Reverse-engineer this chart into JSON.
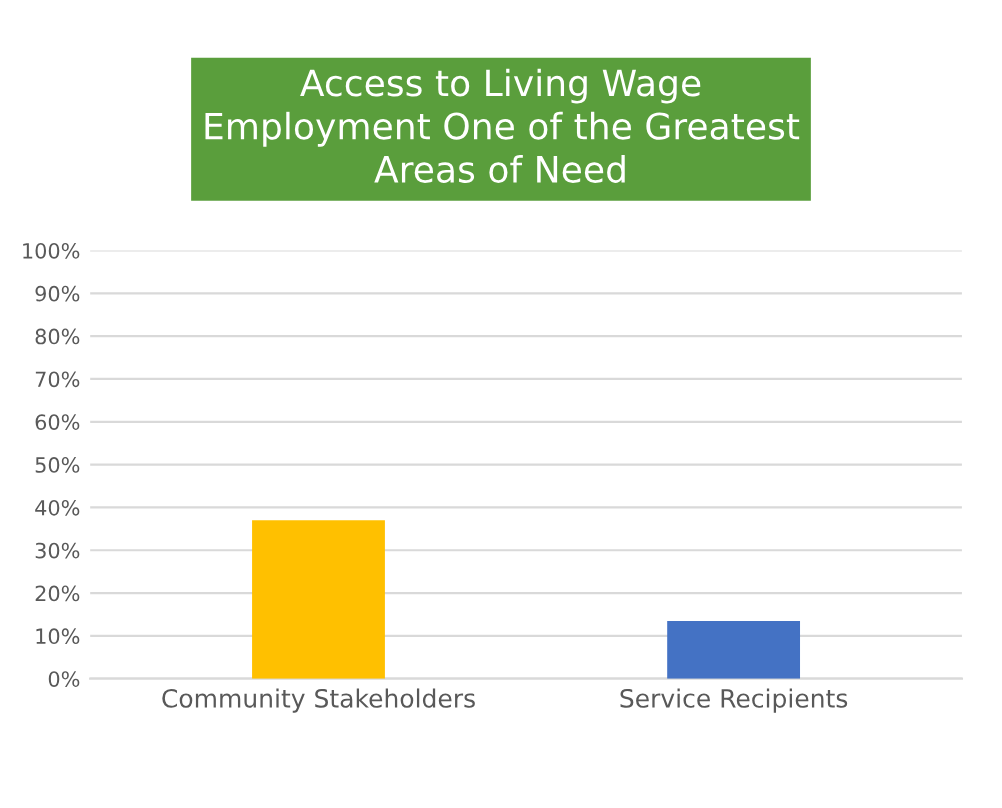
{
  "chart_data": {
    "type": "bar",
    "title": "Access to Living Wage\nEmployment One of the Greatest\nAreas of Need",
    "categories": [
      "Community Stakeholders",
      "Service Recipients"
    ],
    "values": [
      37,
      13.5
    ],
    "colors": [
      "#ffc000",
      "#4472c4"
    ],
    "ylim": [
      0,
      100
    ],
    "yticks": [
      {
        "value": 0,
        "label": "0%"
      },
      {
        "value": 10,
        "label": "10%"
      },
      {
        "value": 20,
        "label": "20%"
      },
      {
        "value": 30,
        "label": "30%"
      },
      {
        "value": 40,
        "label": "40%"
      },
      {
        "value": 50,
        "label": "50%"
      },
      {
        "value": 60,
        "label": "60%"
      },
      {
        "value": 70,
        "label": "70%"
      },
      {
        "value": 80,
        "label": "80%"
      },
      {
        "value": 90,
        "label": "90%"
      },
      {
        "value": 100,
        "label": "100%"
      }
    ],
    "grid": "y"
  }
}
